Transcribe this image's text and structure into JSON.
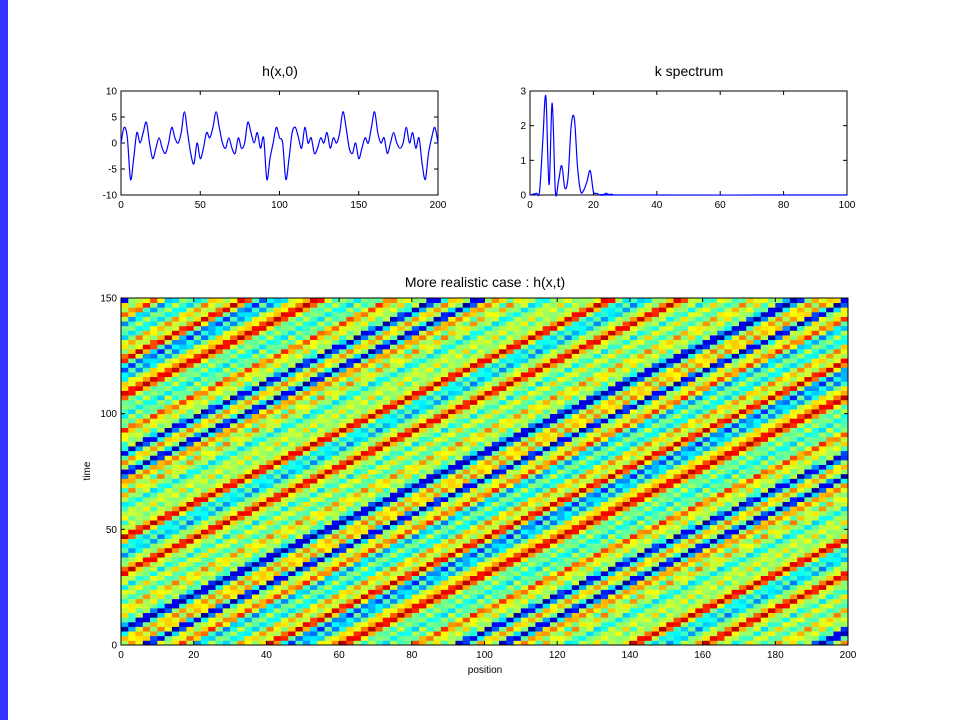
{
  "chart_data": [
    {
      "type": "line",
      "title": "h(x,0)",
      "xlabel": "",
      "ylabel": "",
      "xlim": [
        0,
        200
      ],
      "ylim": [
        -10,
        10
      ],
      "xticks": [
        0,
        50,
        100,
        150,
        200
      ],
      "yticks": [
        -10,
        -5,
        0,
        5,
        10
      ],
      "line_color": "#0000ff",
      "series": [
        {
          "x": [
            0,
            2,
            4,
            6,
            8,
            10,
            12,
            14,
            16,
            18,
            20,
            22,
            24,
            26,
            28,
            30,
            32,
            34,
            36,
            38,
            40,
            42,
            44,
            46,
            48,
            50,
            52,
            54,
            56,
            58,
            60,
            62,
            64,
            66,
            68,
            70,
            72,
            74,
            76,
            78,
            80,
            82,
            84,
            86,
            88,
            90,
            92,
            94,
            96,
            98,
            100,
            102,
            104,
            106,
            108,
            110,
            112,
            114,
            116,
            118,
            120,
            122,
            124,
            126,
            128,
            130,
            132,
            134,
            136,
            138,
            140,
            142,
            144,
            146,
            148,
            150,
            152,
            154,
            156,
            158,
            160,
            162,
            164,
            166,
            168,
            170,
            172,
            174,
            176,
            178,
            180,
            182,
            184,
            186,
            188,
            190,
            192,
            194,
            196,
            198,
            200
          ],
          "y": [
            0,
            3,
            1,
            -7,
            -3,
            2,
            0,
            2,
            4,
            0,
            -3,
            -1,
            1,
            -1,
            -2,
            0,
            3,
            1,
            0,
            2,
            6,
            2,
            -2,
            -4,
            0,
            -3,
            -1,
            2,
            1,
            3,
            6,
            3,
            0,
            -1,
            1,
            -1,
            -2,
            1,
            -1,
            0,
            4,
            2,
            0,
            2,
            -1,
            1,
            -7,
            -3,
            0,
            3,
            1,
            0,
            -7,
            -3,
            2,
            3,
            1,
            -1,
            3,
            0,
            1,
            -2,
            -1,
            1,
            0,
            2,
            -1,
            1,
            0,
            2,
            6,
            3,
            -1,
            -2,
            0,
            -3,
            -1,
            1,
            0,
            3,
            6,
            2,
            0,
            1,
            -2,
            0,
            2,
            0,
            -1,
            0,
            3,
            0,
            2,
            -1,
            1,
            -4,
            -7,
            -2,
            1,
            3,
            0
          ]
        }
      ]
    },
    {
      "type": "line",
      "title": "k spectrum",
      "xlabel": "",
      "ylabel": "",
      "xlim": [
        0,
        100
      ],
      "ylim": [
        0,
        3
      ],
      "xticks": [
        0,
        20,
        40,
        60,
        80,
        100
      ],
      "yticks": [
        0,
        1,
        2,
        3
      ],
      "line_color": "#0000ff",
      "series": [
        {
          "x": [
            0,
            2,
            3,
            4,
            5,
            6,
            7,
            8,
            9,
            10,
            11,
            12,
            13,
            14,
            15,
            16,
            17,
            18,
            19,
            20,
            21,
            22,
            23,
            24,
            25,
            26,
            28,
            100
          ],
          "y": [
            0,
            0.05,
            0.1,
            1.5,
            2.85,
            0.3,
            2.65,
            0.1,
            0.4,
            0.85,
            0.2,
            0.5,
            2.0,
            2.2,
            0.8,
            0.1,
            0.15,
            0.4,
            0.7,
            0.1,
            0.05,
            0.0,
            0.0,
            0.05,
            0.0,
            0.02,
            0.0,
            0.0
          ]
        }
      ]
    },
    {
      "type": "heatmap",
      "title": "More realistic case : h(x,t)",
      "xlabel": "position",
      "ylabel": "time",
      "xlim": [
        0,
        200
      ],
      "ylim": [
        0,
        150
      ],
      "xticks": [
        0,
        20,
        40,
        60,
        80,
        100,
        120,
        140,
        160,
        180,
        200
      ],
      "yticks": [
        0,
        50,
        100,
        150
      ],
      "colormap": [
        "#00008f",
        "#0000ff",
        "#00ffff",
        "#ffff00",
        "#ff0000",
        "#800000"
      ],
      "wave_speed": 1.3
    }
  ]
}
